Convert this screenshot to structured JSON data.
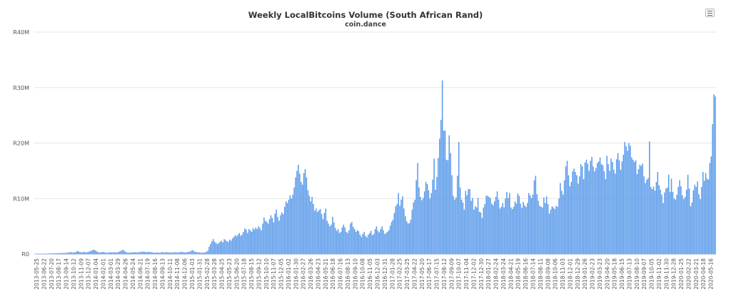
{
  "chart_data": {
    "type": "bar",
    "title": "Weekly LocalBitcoins Volume (South African Rand)",
    "subtitle": "coin.dance",
    "xlabel": "",
    "ylabel": "",
    "ylim": [
      0,
      40000000
    ],
    "y_ticks": [
      {
        "value": 0,
        "label": "R0"
      },
      {
        "value": 10000000,
        "label": "R10M"
      },
      {
        "value": 20000000,
        "label": "R20M"
      },
      {
        "value": 30000000,
        "label": "R30M"
      },
      {
        "value": 40000000,
        "label": "R40M"
      }
    ],
    "grid": true,
    "legend": "none",
    "color": "#5b9bea",
    "start_week": "2013-05-25",
    "x_tick_labels": [
      "2013-05-25",
      "2013-06-22",
      "2013-07-20",
      "2013-08-17",
      "2013-09-14",
      "2013-10-12",
      "2013-11-09",
      "2013-12-07",
      "2014-01-04",
      "2014-02-01",
      "2014-03-01",
      "2014-03-29",
      "2014-04-26",
      "2014-05-24",
      "2014-06-21",
      "2014-07-19",
      "2014-08-16",
      "2014-09-13",
      "2014-10-11",
      "2014-11-08",
      "2014-12-06",
      "2015-01-03",
      "2015-01-31",
      "2015-02-28",
      "2015-03-28",
      "2015-04-25",
      "2015-05-23",
      "2015-06-20",
      "2015-07-18",
      "2015-08-15",
      "2015-09-12",
      "2015-10-10",
      "2015-11-07",
      "2015-12-05",
      "2016-01-02",
      "2016-01-30",
      "2016-02-27",
      "2016-03-26",
      "2016-04-23",
      "2016-05-21",
      "2016-06-18",
      "2016-07-16",
      "2016-08-13",
      "2016-09-10",
      "2016-10-08",
      "2016-11-05",
      "2016-12-03",
      "2016-12-31",
      "2017-01-28",
      "2017-02-25",
      "2017-03-25",
      "2017-04-22",
      "2017-05-20",
      "2017-06-17",
      "2017-07-15",
      "2017-08-12",
      "2017-09-09",
      "2017-10-07",
      "2017-11-04",
      "2017-12-02",
      "2017-12-30",
      "2018-01-27",
      "2018-02-24",
      "2018-03-24",
      "2018-04-21",
      "2018-05-19",
      "2018-06-16",
      "2018-07-14",
      "2018-08-11",
      "2018-09-08",
      "2018-10-06",
      "2018-11-03",
      "2018-12-01",
      "2018-12-29",
      "2019-01-26",
      "2019-02-23",
      "2019-03-23",
      "2019-04-20",
      "2019-05-18",
      "2019-06-15",
      "2019-07-13",
      "2019-08-10",
      "2019-09-07",
      "2019-10-05",
      "2019-11-02",
      "2019-11-30",
      "2019-12-28",
      "2020-01-25",
      "2020-02-22",
      "2020-03-21",
      "2020-04-18",
      "2020-05-16"
    ],
    "values": [
      50000,
      50000,
      50000,
      60000,
      60000,
      60000,
      70000,
      70000,
      80000,
      80000,
      100000,
      100000,
      120000,
      120000,
      130000,
      140000,
      150000,
      160000,
      160000,
      170000,
      180000,
      190000,
      200000,
      220000,
      250000,
      300000,
      350000,
      300000,
      280000,
      300000,
      400000,
      550000,
      450000,
      350000,
      300000,
      350000,
      400000,
      300000,
      350000,
      400000,
      500000,
      600000,
      700000,
      800000,
      650000,
      500000,
      350000,
      300000,
      300000,
      350000,
      400000,
      300000,
      250000,
      250000,
      300000,
      350000,
      300000,
      300000,
      350000,
      300000,
      300000,
      400000,
      500000,
      600000,
      750000,
      650000,
      400000,
      300000,
      250000,
      250000,
      300000,
      300000,
      300000,
      350000,
      300000,
      300000,
      350000,
      400000,
      400000,
      450000,
      400000,
      350000,
      350000,
      400000,
      350000,
      350000,
      300000,
      250000,
      250000,
      300000,
      250000,
      250000,
      300000,
      350000,
      300000,
      300000,
      350000,
      300000,
      300000,
      250000,
      300000,
      300000,
      350000,
      300000,
      300000,
      300000,
      350000,
      400000,
      350000,
      300000,
      300000,
      350000,
      400000,
      450000,
      600000,
      700000,
      500000,
      400000,
      350000,
      300000,
      300000,
      250000,
      250000,
      250000,
      300000,
      400000,
      600000,
      1300000,
      1800000,
      2300000,
      2700000,
      2200000,
      2000000,
      1800000,
      2000000,
      2200000,
      2400000,
      2100000,
      2700000,
      2500000,
      2300000,
      2200000,
      2600000,
      2400000,
      2800000,
      3100000,
      3400000,
      3200000,
      3500000,
      3800000,
      3300000,
      3500000,
      4000000,
      4600000,
      4400000,
      3800000,
      4500000,
      4300000,
      4000000,
      4700000,
      4400000,
      4800000,
      4500000,
      5000000,
      4700000,
      4300000,
      5500000,
      6600000,
      6000000,
      5800000,
      5500000,
      6300000,
      7000000,
      6500000,
      5700000,
      7300000,
      8000000,
      6700000,
      6000000,
      7000000,
      7500000,
      7200000,
      8500000,
      9500000,
      9200000,
      9800000,
      10600000,
      10000000,
      10700000,
      12000000,
      13800000,
      15000000,
      16100000,
      14500000,
      13000000,
      12500000,
      14600000,
      15300000,
      13800000,
      11500000,
      10500000,
      9500000,
      10300000,
      9000000,
      7800000,
      8200000,
      7600000,
      7900000,
      8100000,
      7200000,
      6300000,
      7400000,
      8200000,
      6000000,
      5500000,
      5000000,
      5300000,
      6700000,
      5700000,
      4700000,
      4200000,
      4500000,
      3800000,
      4000000,
      4800000,
      5300000,
      4800000,
      4000000,
      3800000,
      4300000,
      5500000,
      5800000,
      4900000,
      4500000,
      4000000,
      4300000,
      4100000,
      3500000,
      3100000,
      3600000,
      4000000,
      3300000,
      3000000,
      3500000,
      3800000,
      4200000,
      3400000,
      3600000,
      4500000,
      5000000,
      4200000,
      3900000,
      4500000,
      5000000,
      4300000,
      3600000,
      3800000,
      4000000,
      4300000,
      5100000,
      5800000,
      6200000,
      7400000,
      8600000,
      9000000,
      11000000,
      8700000,
      9800000,
      10400000,
      8200000,
      6800000,
      5900000,
      5500000,
      5600000,
      6200000,
      8000000,
      9300000,
      9800000,
      13300000,
      16400000,
      12000000,
      10300000,
      9700000,
      10100000,
      11300000,
      13000000,
      12600000,
      11500000,
      10000000,
      11000000,
      13400000,
      17200000,
      11600000,
      13900000,
      17300000,
      20800000,
      24200000,
      31300000,
      22200000,
      22300000,
      17000000,
      16900000,
      21400000,
      18200000,
      14200000,
      10500000,
      9800000,
      10200000,
      14100000,
      20200000,
      12000000,
      9800000,
      9300000,
      8000000,
      11400000,
      10600000,
      11700000,
      11700000,
      9600000,
      10100000,
      8000000,
      8600000,
      8400000,
      10100000,
      7600000,
      7500000,
      6500000,
      8400000,
      9000000,
      10500000,
      10500000,
      10300000,
      10100000,
      9100000,
      8800000,
      9500000,
      10300000,
      11300000,
      9800000,
      8200000,
      8500000,
      9200000,
      8400000,
      10000000,
      11200000,
      10100000,
      11000000,
      8400000,
      8100000,
      8500000,
      9500000,
      9100000,
      10900000,
      10500000,
      9100000,
      8300000,
      9400000,
      8800000,
      8500000,
      9200000,
      11000000,
      10600000,
      10100000,
      10700000,
      13300000,
      14100000,
      10800000,
      9600000,
      8700000,
      8500000,
      8400000,
      10200000,
      9200000,
      10400000,
      9000000,
      7300000,
      8000000,
      8600000,
      8400000,
      8100000,
      8700000,
      8500000,
      10000000,
      12800000,
      11400000,
      10700000,
      13300000,
      15800000,
      16800000,
      14200000,
      12200000,
      13000000,
      14900000,
      15400000,
      14800000,
      14200000,
      12700000,
      14000000,
      16200000,
      15800000,
      13500000,
      16500000,
      17000000,
      16300000,
      15000000,
      16800000,
      17500000,
      15800000,
      14900000,
      15500000,
      16400000,
      16700000,
      17400000,
      16200000,
      16000000,
      14900000,
      13500000,
      17700000,
      16200000,
      15000000,
      17200000,
      16600000,
      15200000,
      14500000,
      17100000,
      18200000,
      16900000,
      15200000,
      16700000,
      17900000,
      20200000,
      19400000,
      18600000,
      20000000,
      19500000,
      17400000,
      17000000,
      16600000,
      16900000,
      14400000,
      15300000,
      16100000,
      15900000,
      16300000,
      14000000,
      12800000,
      13400000,
      13700000,
      20300000,
      12100000,
      11700000,
      12200000,
      11400000,
      13000000,
      14800000,
      12400000,
      11600000,
      10700000,
      9200000,
      11100000,
      11800000,
      12000000,
      14300000,
      11200000,
      13600000,
      11200000,
      10000000,
      9800000,
      10700000,
      12100000,
      13300000,
      12200000,
      10600000,
      9900000,
      10300000,
      11600000,
      14300000,
      11800000,
      8600000,
      9300000,
      11500000,
      12500000,
      12100000,
      13100000,
      10800000,
      9900000,
      12100000,
      14800000,
      13200000,
      14600000,
      13600000,
      13400000,
      16400000,
      17600000,
      23400000,
      28800000,
      28400000
    ]
  }
}
